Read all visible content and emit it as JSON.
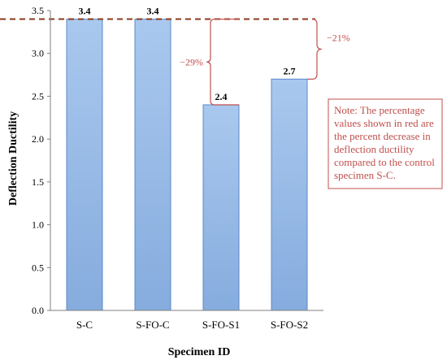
{
  "chart_data": {
    "type": "bar",
    "categories": [
      "S-C",
      "S-FO-C",
      "S-FO-S1",
      "S-FO-S2"
    ],
    "values": [
      3.4,
      3.4,
      2.4,
      2.7
    ],
    "data_labels": [
      "3.4",
      "3.4",
      "2.4",
      "2.7"
    ],
    "title": "",
    "xlabel": "Specimen ID",
    "ylabel": "Deflection Ductility",
    "ylim": [
      0,
      3.5
    ],
    "ytick_values": [
      0,
      0.5,
      1,
      1.5,
      2,
      2.5,
      3,
      3.5
    ],
    "ytick_labels": [
      "0.0",
      "0.5",
      "1.0",
      "1.5",
      "2.0",
      "2.5",
      "3.0",
      "3.5"
    ],
    "grid": false,
    "legend": "none",
    "annotations": [
      {
        "text": "−29%",
        "from_category": "S-FO-C",
        "to_category": "S-FO-S1"
      },
      {
        "text": "−21%",
        "from_category": "S-FO-C",
        "to_category": "S-FO-S2"
      }
    ],
    "note": "Note: The percentage values shown in red are the percent decrease in deflection ductility compared to the control specimen S-C.",
    "colors": {
      "bar_fill_top": "#a9c8ee",
      "bar_fill_bottom": "#86acde",
      "bar_stroke": "#5b89c8",
      "annotation_red": "#c0504d",
      "reference_line": "#8b3a1a",
      "axis": "#7f7f7f",
      "text": "#000000"
    }
  }
}
